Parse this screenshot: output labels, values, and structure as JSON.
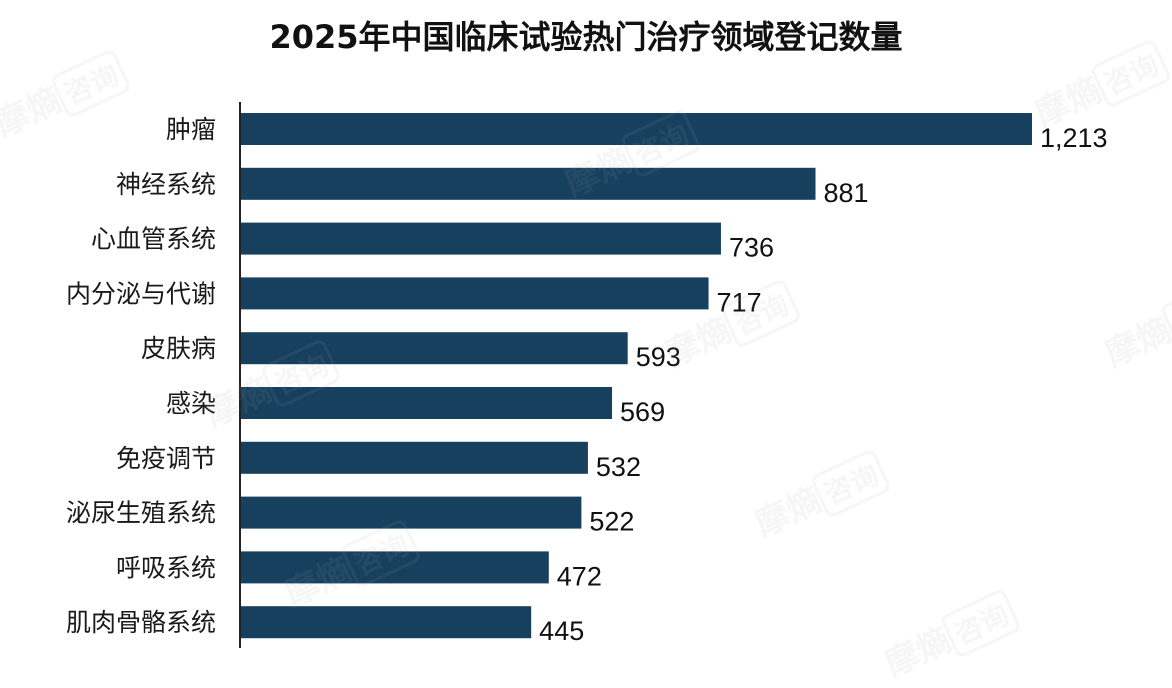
{
  "chart_data": {
    "type": "bar",
    "orientation": "horizontal",
    "title": "2025年中国临床试验热门治疗领域登记数量",
    "categories": [
      "肿瘤",
      "神经系统",
      "心血管系统",
      "内分泌与代谢",
      "皮肤病",
      "感染",
      "免疫调节",
      "泌尿生殖系统",
      "呼吸系统",
      "肌肉骨骼系统"
    ],
    "values": [
      1213,
      881,
      736,
      717,
      593,
      569,
      532,
      522,
      472,
      445
    ],
    "value_labels": [
      "1,213",
      "881",
      "736",
      "717",
      "593",
      "569",
      "532",
      "522",
      "472",
      "445"
    ],
    "bar_color": "#17405f",
    "xlim": [
      0,
      1213
    ],
    "grid": false,
    "legend": "none"
  },
  "watermark": {
    "text": "摩熵",
    "box_text": "咨询"
  }
}
